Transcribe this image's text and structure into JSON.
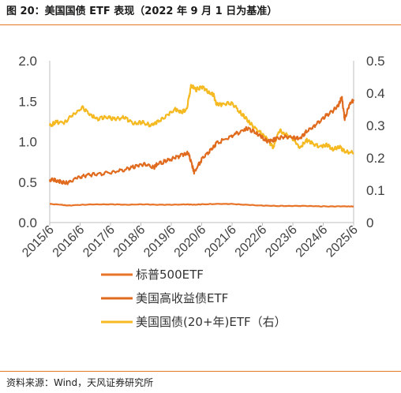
{
  "header": {
    "title": "图 20：美国国债 ETF 表现（2022 年 9 月 1 日为基准）"
  },
  "footer": {
    "source": "资料来源：Wind，天风证券研究所"
  },
  "colors": {
    "rule": "#E87722",
    "axis": "#BFBFBF"
  },
  "chart_data": {
    "type": "line",
    "x_tick_labels": [
      "2015/6",
      "2016/6",
      "2017/6",
      "2018/6",
      "2019/6",
      "2020/6",
      "2021/6",
      "2022/6",
      "2023/6",
      "2024/6",
      "2025/6"
    ],
    "y_left": {
      "ylim": [
        0,
        2.0
      ],
      "ticks": [
        "0.0",
        "0.5",
        "1.0",
        "1.5",
        "2.0"
      ]
    },
    "y_right": {
      "ylim": [
        0,
        0.5
      ],
      "ticks": [
        "0",
        "0.1",
        "0.2",
        "0.3",
        "0.4",
        "0.5"
      ]
    },
    "grid": false,
    "legend_position": "bottom",
    "series": [
      {
        "name": "标普500ETF",
        "axis": "left",
        "color": "#E8742A",
        "x": [
          2015.4,
          2015.8,
          2016.0,
          2016.5,
          2017.0,
          2017.5,
          2018.0,
          2018.5,
          2019.0,
          2019.5,
          2020.0,
          2020.2,
          2020.5,
          2021.0,
          2021.5,
          2022.0,
          2022.5,
          2023.0,
          2023.5,
          2024.0,
          2024.5,
          2025.0,
          2025.4,
          2025.6
        ],
        "y": [
          0.23,
          0.22,
          0.21,
          0.22,
          0.225,
          0.225,
          0.22,
          0.225,
          0.22,
          0.22,
          0.225,
          0.22,
          0.225,
          0.23,
          0.23,
          0.22,
          0.21,
          0.205,
          0.205,
          0.205,
          0.2,
          0.2,
          0.2,
          0.2
        ]
      },
      {
        "name": "美国高收益债ETF",
        "axis": "left",
        "color": "#E06B1E",
        "x": [
          2015.4,
          2015.6,
          2015.8,
          2016.0,
          2016.3,
          2016.6,
          2017.0,
          2017.5,
          2018.0,
          2018.3,
          2018.6,
          2018.9,
          2019.0,
          2019.3,
          2019.6,
          2019.9,
          2020.05,
          2020.2,
          2020.25,
          2020.5,
          2020.8,
          2021.0,
          2021.5,
          2021.9,
          2022.0,
          2022.3,
          2022.5,
          2022.7,
          2022.9,
          2023.0,
          2023.3,
          2023.6,
          2023.8,
          2024.0,
          2024.3,
          2024.6,
          2024.9,
          2025.1,
          2025.2,
          2025.3,
          2025.45,
          2025.6
        ],
        "y": [
          0.53,
          0.52,
          0.5,
          0.49,
          0.55,
          0.58,
          0.6,
          0.62,
          0.66,
          0.7,
          0.72,
          0.68,
          0.72,
          0.76,
          0.8,
          0.84,
          0.86,
          0.68,
          0.62,
          0.78,
          0.9,
          0.98,
          1.07,
          1.14,
          1.16,
          1.12,
          1.06,
          1.0,
          1.02,
          1.04,
          1.06,
          1.05,
          1.04,
          1.12,
          1.2,
          1.3,
          1.38,
          1.46,
          1.55,
          1.28,
          1.45,
          1.52
        ]
      },
      {
        "name": "美国国债(20+年)ETF（右）",
        "axis": "right",
        "color": "#F5B921",
        "x": [
          2015.4,
          2015.6,
          2015.9,
          2016.2,
          2016.5,
          2016.8,
          2017.0,
          2017.3,
          2017.6,
          2017.9,
          2018.2,
          2018.5,
          2018.8,
          2019.0,
          2019.3,
          2019.6,
          2019.8,
          2020.0,
          2020.15,
          2020.3,
          2020.5,
          2020.7,
          2020.9,
          2021.0,
          2021.2,
          2021.5,
          2021.8,
          2022.0,
          2022.2,
          2022.5,
          2022.7,
          2022.9,
          2023.1,
          2023.3,
          2023.6,
          2023.8,
          2024.0,
          2024.2,
          2024.5,
          2024.7,
          2024.9,
          2025.1,
          2025.3,
          2025.6
        ],
        "y": [
          0.3,
          0.31,
          0.31,
          0.335,
          0.355,
          0.33,
          0.32,
          0.325,
          0.32,
          0.325,
          0.305,
          0.31,
          0.3,
          0.31,
          0.33,
          0.35,
          0.34,
          0.35,
          0.425,
          0.41,
          0.42,
          0.405,
          0.395,
          0.365,
          0.365,
          0.37,
          0.34,
          0.32,
          0.3,
          0.275,
          0.26,
          0.23,
          0.285,
          0.275,
          0.255,
          0.23,
          0.255,
          0.245,
          0.235,
          0.24,
          0.225,
          0.235,
          0.22,
          0.215
        ]
      }
    ]
  }
}
